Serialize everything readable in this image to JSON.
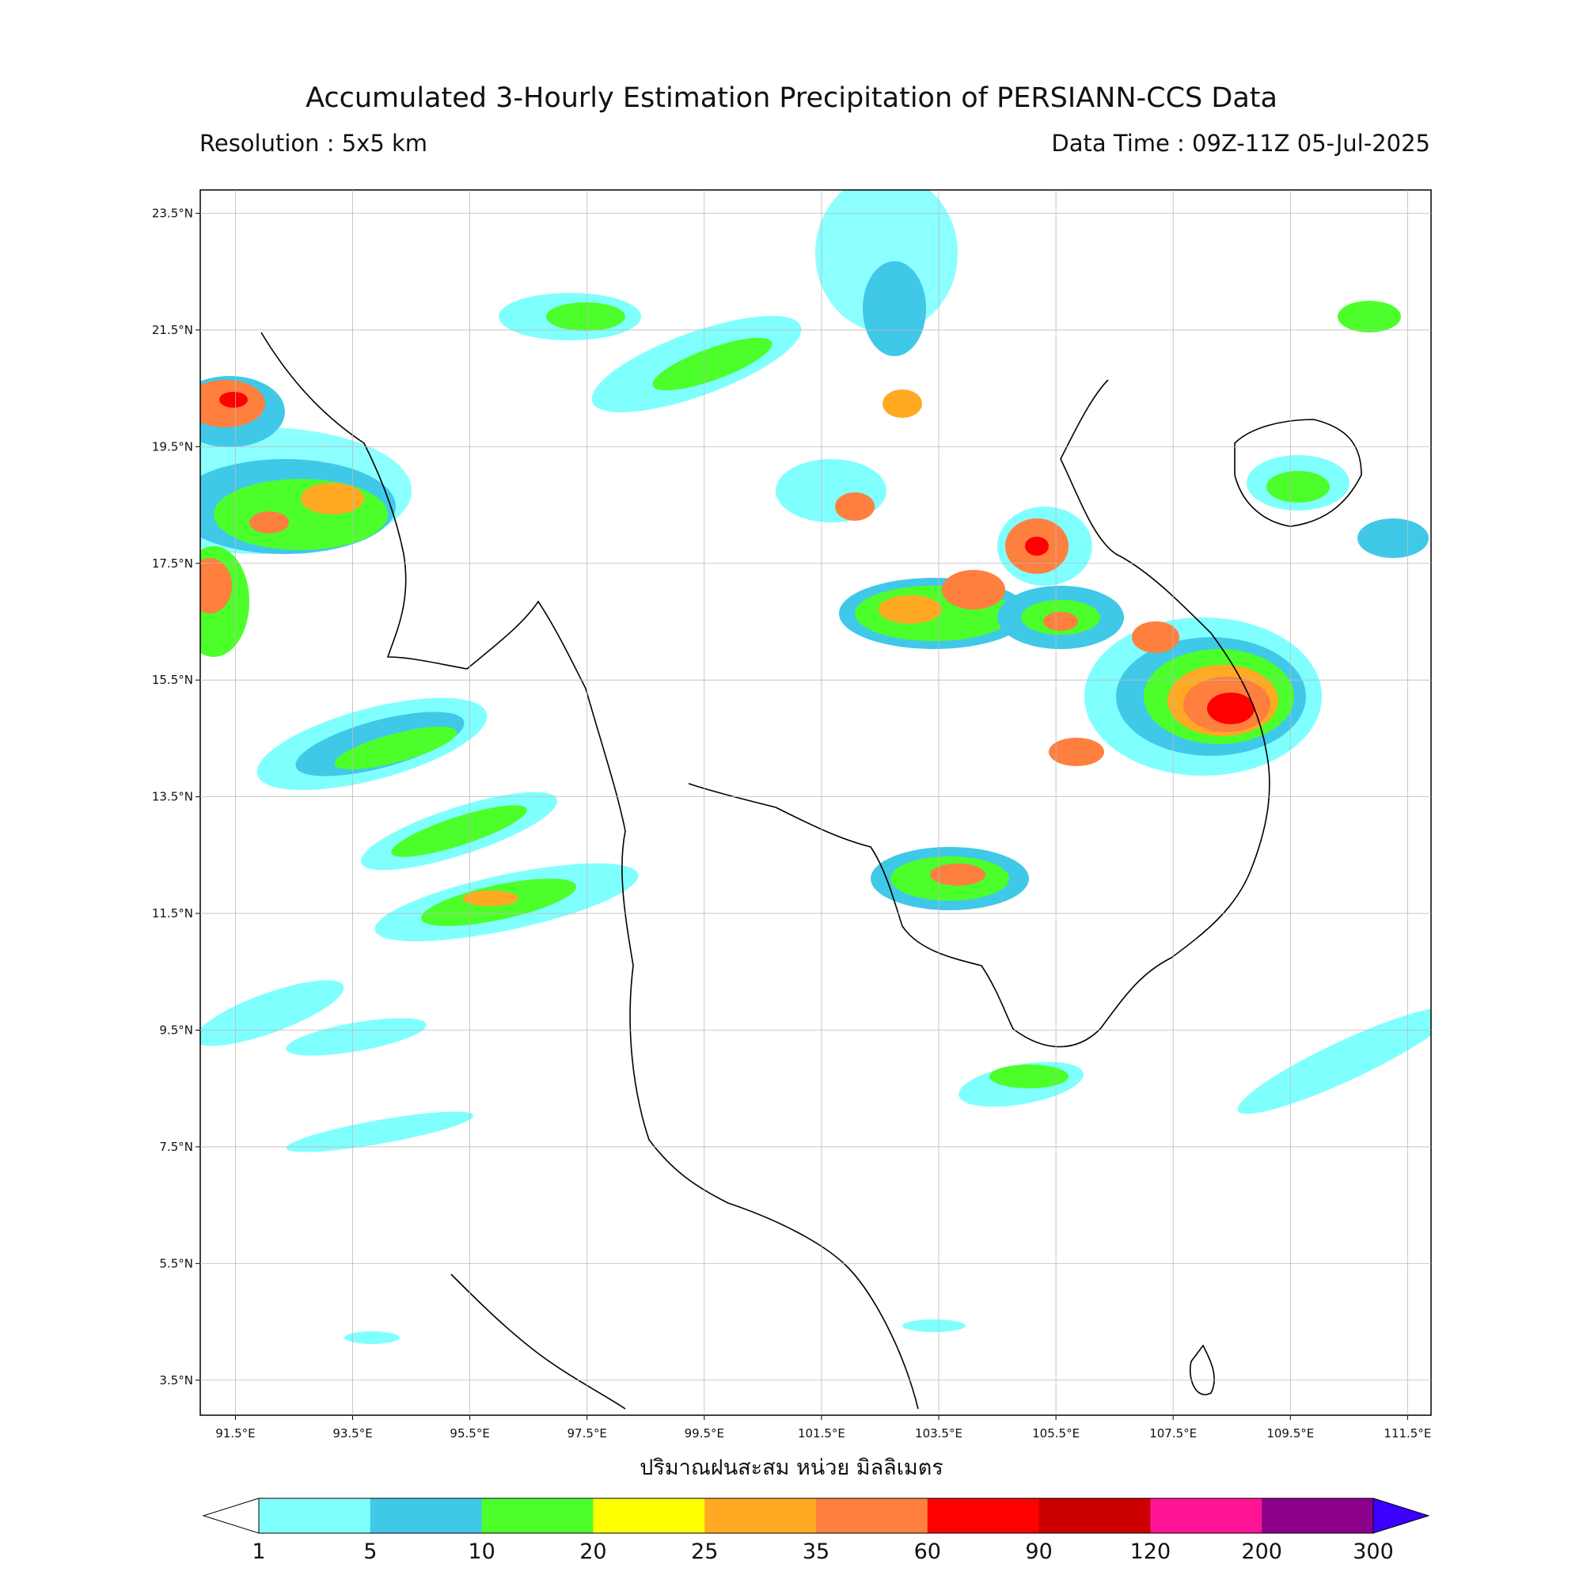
{
  "title": "Accumulated 3-Hourly Estimation Precipitation of PERSIANN-CCS Data",
  "resolution": "Resolution : 5x5 km",
  "data_time": "Data Time : 09Z-11Z 05-Jul-2025",
  "colorbar_label": "ปริมาณฝนสะสม หน่วย มิลลิเมตร",
  "map": {
    "lon_range": [
      90.9,
      111.9
    ],
    "lat_range": [
      2.9,
      23.9
    ],
    "lat_ticks": [
      "23.5°N",
      "21.5°N",
      "19.5°N",
      "17.5°N",
      "15.5°N",
      "13.5°N",
      "11.5°N",
      "9.5°N",
      "7.5°N",
      "5.5°N",
      "3.5°N"
    ],
    "lon_ticks": [
      "91.5°E",
      "93.5°E",
      "95.5°E",
      "97.5°E",
      "99.5°E",
      "101.5°E",
      "103.5°E",
      "105.5°E",
      "107.5°E",
      "109.5°E",
      "111.5°E"
    ]
  },
  "colorbar": {
    "ticks": [
      "1",
      "5",
      "10",
      "20",
      "25",
      "35",
      "60",
      "90",
      "120",
      "200",
      "300"
    ],
    "colors": [
      "#80ffff",
      "#40c8e8",
      "#4cff2a",
      "#ffff00",
      "#ffaa22",
      "#ff7f3f",
      "#ff0000",
      "#cc0000",
      "#ff1493",
      "#8b008b"
    ],
    "over_color": "#3c00ff",
    "under_color": "#ffffff"
  }
}
